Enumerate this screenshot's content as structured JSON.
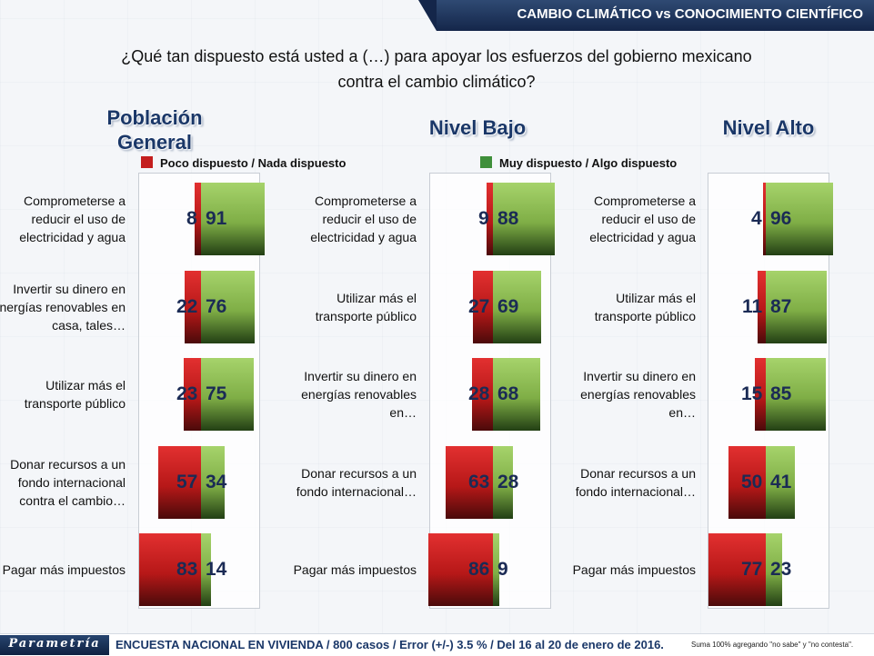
{
  "header": {
    "title": "CAMBIO CLIMÁTICO vs CONOCIMIENTO CIENTÍFICO"
  },
  "question": {
    "line1": "¿Qué tan dispuesto está usted a (…) para apoyar los esfuerzos del gobierno mexicano",
    "line2": "contra el cambio climático?"
  },
  "legend": {
    "negative": "Poco dispuesto / Nada dispuesto",
    "positive": "Muy dispuesto / Algo dispuesto"
  },
  "footer": {
    "logo": "Parametría",
    "survey": "ENCUESTA NACIONAL EN VIVIENDA / 800 casos / Error (+/-) 3.5 % / Del 16 al 20 de enero de 2016.",
    "note": "Suma 100%  agregando \"no sabe\" y \"no contesta\"."
  },
  "colors": {
    "negative": "#c41e1e",
    "positive": "#8fbf55",
    "title": "#1a3768",
    "value": "#1b2b55"
  },
  "chart_data": [
    {
      "type": "bar",
      "title": "Población General",
      "categories": [
        "Comprometerse a reducir el uso de electricidad y agua",
        "Invertir su dinero en energías renovables en casa, tales…",
        "Utilizar más el transporte público",
        "Donar recursos a un fondo internacional contra el cambio…",
        "Pagar más impuestos"
      ],
      "series": [
        {
          "name": "Poco dispuesto / Nada dispuesto",
          "values": [
            8,
            22,
            23,
            57,
            83
          ]
        },
        {
          "name": "Muy dispuesto / Algo dispuesto",
          "values": [
            91,
            76,
            75,
            34,
            14
          ]
        }
      ]
    },
    {
      "type": "bar",
      "title": "Nivel Bajo",
      "categories": [
        "Comprometerse a reducir el uso de electricidad y agua",
        "Utilizar más el transporte público",
        "Invertir su dinero en energías renovables en…",
        "Donar recursos a un fondo internacional…",
        "Pagar más impuestos"
      ],
      "series": [
        {
          "name": "Poco dispuesto / Nada dispuesto",
          "values": [
            9,
            27,
            28,
            63,
            86
          ]
        },
        {
          "name": "Muy dispuesto / Algo dispuesto",
          "values": [
            88,
            69,
            68,
            28,
            9
          ]
        }
      ]
    },
    {
      "type": "bar",
      "title": "Nivel Alto",
      "categories": [
        "Comprometerse a reducir el uso de electricidad y agua",
        "Utilizar más el transporte público",
        "Invertir su dinero en energías renovables en…",
        "Donar recursos a un fondo internacional…",
        "Pagar más impuestos"
      ],
      "series": [
        {
          "name": "Poco dispuesto / Nada dispuesto",
          "values": [
            4,
            11,
            15,
            50,
            77
          ]
        },
        {
          "name": "Muy dispuesto / Algo dispuesto",
          "values": [
            96,
            87,
            85,
            41,
            23
          ]
        }
      ]
    }
  ]
}
